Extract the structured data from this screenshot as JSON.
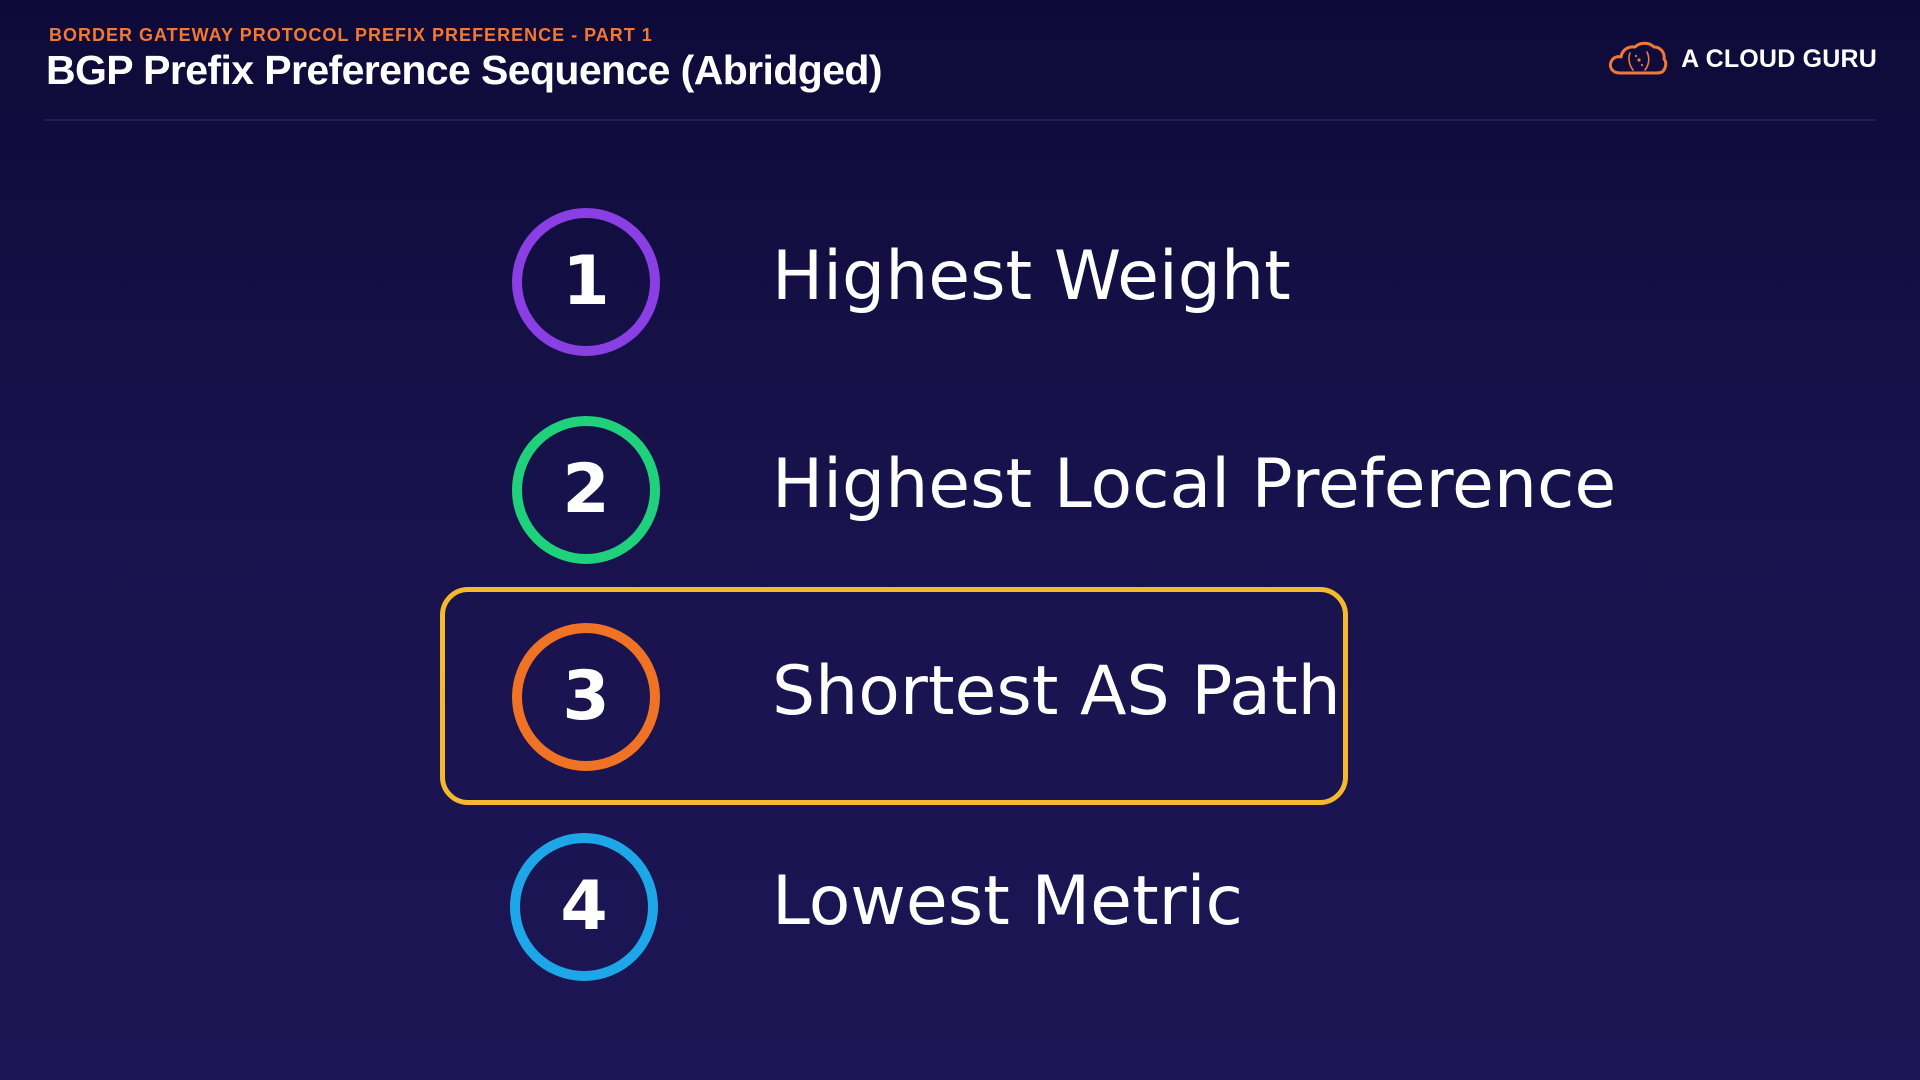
{
  "header": {
    "kicker": "BORDER GATEWAY PROTOCOL PREFIX PREFERENCE - PART 1",
    "title": "BGP Prefix Preference Sequence (Abridged)"
  },
  "brand": {
    "name": "A CLOUD GURU",
    "logo_icon": "cloud-icon",
    "logo_color": "#f07a35"
  },
  "steps": [
    {
      "number": "1",
      "label": "Highest Weight",
      "color": "#8a3fe4",
      "highlighted": false
    },
    {
      "number": "2",
      "label": "Highest Local Preference",
      "color": "#1fd17a",
      "highlighted": false
    },
    {
      "number": "3",
      "label": "Shortest AS Path",
      "color": "#f07325",
      "highlighted": true
    },
    {
      "number": "4",
      "label": "Lowest Metric",
      "color": "#1ea7e8",
      "highlighted": false
    }
  ],
  "highlight": {
    "color": "#f4b92c"
  },
  "theme": {
    "background": "#17114a",
    "accent": "#f07a35"
  }
}
